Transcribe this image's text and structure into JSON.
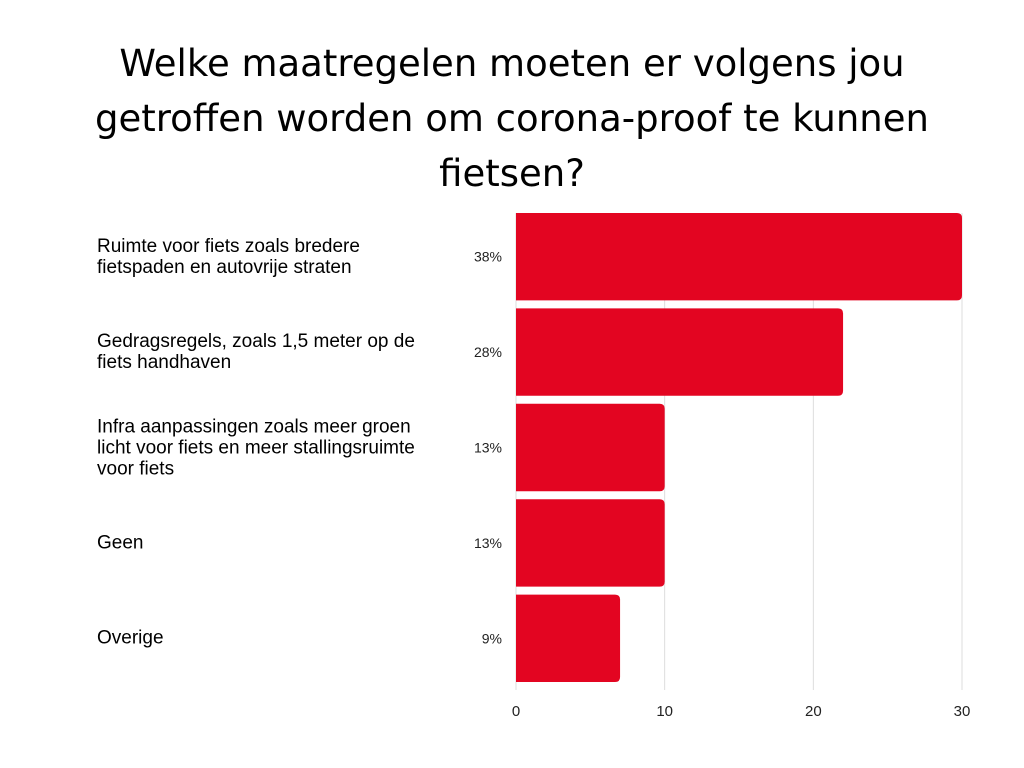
{
  "chart_data": {
    "type": "bar",
    "orientation": "horizontal",
    "title": "Welke maatregelen moeten er volgens jou getroffen worden om corona-proof te kunnen fietsen?",
    "categories": [
      "Ruimte voor fiets zoals bredere fietspaden en autovrije straten",
      "Gedragsregels, zoals 1,5 meter op de fiets handhaven",
      "Infra aanpassingen zoals meer groen licht voor fiets en meer stallingsruimte voor fiets",
      "Geen",
      "Overige"
    ],
    "values": [
      30,
      22,
      10,
      10,
      7
    ],
    "data_labels": [
      "38%",
      "28%",
      "13%",
      "13%",
      "9%"
    ],
    "xlim": [
      0,
      30
    ],
    "xticks": [
      "0",
      "10",
      "20",
      "30"
    ],
    "grid": true,
    "legend": "none",
    "colors": {
      "bar": "#E30521",
      "grid": "#DDDDDD"
    }
  }
}
